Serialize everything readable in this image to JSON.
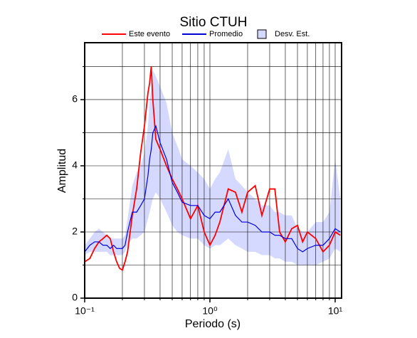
{
  "chart_data": {
    "type": "line",
    "title": "Sitio CTUH",
    "x_label": "Periodo (s)",
    "y_label": "Amplitud",
    "xscale": "log",
    "grid": true,
    "legend": "top",
    "xlim": [
      0.1,
      11.25
    ],
    "xticks": [
      {
        "value": 0.1,
        "label": "10⁻¹"
      },
      {
        "value": 1,
        "label": "10⁰"
      },
      {
        "value": 10,
        "label": "10¹"
      }
    ],
    "xminorticks": [
      0.2,
      0.3,
      0.4,
      0.5,
      0.6,
      0.7,
      0.8,
      0.9,
      2,
      3,
      4,
      5,
      6,
      7,
      8,
      9
    ],
    "ylim": [
      0,
      7.72
    ],
    "yticks": [
      0,
      2,
      4,
      6
    ],
    "yminorticks": [
      1,
      3,
      5,
      7
    ],
    "x": [
      0.1,
      0.11,
      0.12,
      0.13,
      0.14,
      0.15,
      0.16,
      0.17,
      0.18,
      0.19,
      0.2,
      0.21,
      0.22,
      0.24,
      0.26,
      0.28,
      0.3,
      0.32,
      0.33,
      0.34,
      0.35,
      0.37,
      0.4,
      0.45,
      0.5,
      0.55,
      0.6,
      0.7,
      0.8,
      0.9,
      1.0,
      1.1,
      1.2,
      1.4,
      1.6,
      1.8,
      2.0,
      2.3,
      2.6,
      3.0,
      3.3,
      3.6,
      4.0,
      4.5,
      5,
      5.5,
      6,
      7,
      8,
      9,
      10,
      11
    ],
    "band": {
      "name": "Desv. Est.",
      "color": "#d6d9ff",
      "lower": [
        1.3,
        1.4,
        1.4,
        1.4,
        1.4,
        1.4,
        1.3,
        1.3,
        1.3,
        1.3,
        1.3,
        1.4,
        1.6,
        1.8,
        1.8,
        1.9,
        2.0,
        2.4,
        2.6,
        2.8,
        3.0,
        3.2,
        3.0,
        2.6,
        2.2,
        2.0,
        1.9,
        1.8,
        1.8,
        1.6,
        1.5,
        1.6,
        1.6,
        1.8,
        1.6,
        1.5,
        1.4,
        1.4,
        1.3,
        1.3,
        1.2,
        1.2,
        1.1,
        1.1,
        1.0,
        1.0,
        1.0,
        1.0,
        1.1,
        1.2,
        1.5,
        1.4
      ],
      "upper": [
        1.6,
        1.8,
        2.0,
        2.1,
        2.0,
        1.9,
        1.8,
        1.8,
        1.8,
        1.8,
        1.8,
        1.9,
        2.4,
        3.4,
        3.8,
        4.0,
        4.4,
        5.2,
        6.0,
        6.3,
        6.9,
        6.7,
        6.4,
        5.9,
        5.0,
        4.6,
        4.2,
        4.0,
        3.8,
        3.6,
        3.3,
        3.6,
        3.8,
        4.5,
        3.6,
        3.4,
        3.2,
        3.0,
        2.8,
        2.8,
        2.6,
        2.6,
        2.5,
        2.5,
        2.1,
        2.0,
        2.0,
        2.3,
        2.3,
        2.6,
        4.2,
        3.0
      ]
    },
    "series": [
      {
        "name": "Este evento",
        "color": "#ff0000",
        "values": [
          1.1,
          1.2,
          1.5,
          1.7,
          1.8,
          1.9,
          1.8,
          1.4,
          1.1,
          0.9,
          0.85,
          1.1,
          1.4,
          2.5,
          3.3,
          4.4,
          5.2,
          6.2,
          6.5,
          7.0,
          6.0,
          4.8,
          4.5,
          4.0,
          3.6,
          3.3,
          3.0,
          2.4,
          2.8,
          2.0,
          1.6,
          1.9,
          2.3,
          3.3,
          3.2,
          2.6,
          3.2,
          3.4,
          2.5,
          3.3,
          3.3,
          2.0,
          1.7,
          2.1,
          2.2,
          1.7,
          2.0,
          1.8,
          1.4,
          1.6,
          2.0,
          1.9
        ]
      },
      {
        "name": "Promedio",
        "color": "#0000dd",
        "values": [
          1.4,
          1.6,
          1.7,
          1.7,
          1.6,
          1.6,
          1.5,
          1.6,
          1.5,
          1.5,
          1.5,
          1.6,
          2.0,
          2.6,
          2.6,
          2.8,
          3.0,
          3.7,
          4.2,
          4.5,
          5.0,
          5.2,
          4.7,
          4.2,
          3.5,
          3.2,
          2.9,
          2.8,
          2.8,
          2.5,
          2.4,
          2.6,
          2.6,
          3.0,
          2.5,
          2.3,
          2.3,
          2.2,
          2.0,
          2.0,
          1.9,
          1.9,
          1.8,
          1.8,
          1.5,
          1.4,
          1.5,
          1.6,
          1.6,
          1.8,
          2.1,
          2.0
        ]
      }
    ]
  }
}
